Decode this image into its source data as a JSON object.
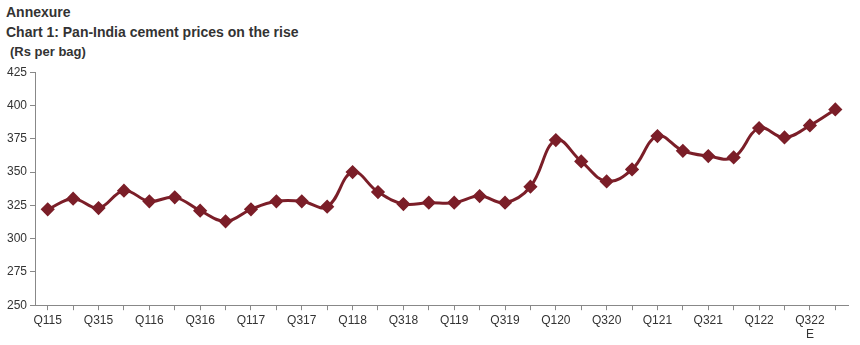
{
  "chart_data": {
    "type": "line",
    "header": "Annexure",
    "title": "Chart 1: Pan-India cement prices on the rise",
    "y_label": "(Rs per bag)",
    "categories": [
      "Q115",
      null,
      "Q315",
      null,
      "Q116",
      null,
      "Q316",
      null,
      "Q117",
      null,
      "Q317",
      null,
      "Q118",
      null,
      "Q318",
      null,
      "Q119",
      null,
      "Q319",
      null,
      "Q120",
      null,
      "Q320",
      null,
      "Q121",
      null,
      "Q321",
      null,
      "Q122",
      null,
      "Q322\nE",
      null
    ],
    "values": [
      322,
      330,
      323,
      336,
      328,
      331,
      321,
      313,
      322,
      328,
      328,
      324,
      350,
      335,
      326,
      327,
      327,
      332,
      327,
      339,
      374,
      358,
      343,
      352,
      377,
      366,
      362,
      361,
      383,
      376,
      385,
      397
    ],
    "color": "#7b1e28",
    "marker": "diamond",
    "ylim": [
      250,
      425
    ],
    "yticks": [
      250,
      275,
      300,
      325,
      350,
      375,
      400,
      425
    ],
    "grid": false
  }
}
